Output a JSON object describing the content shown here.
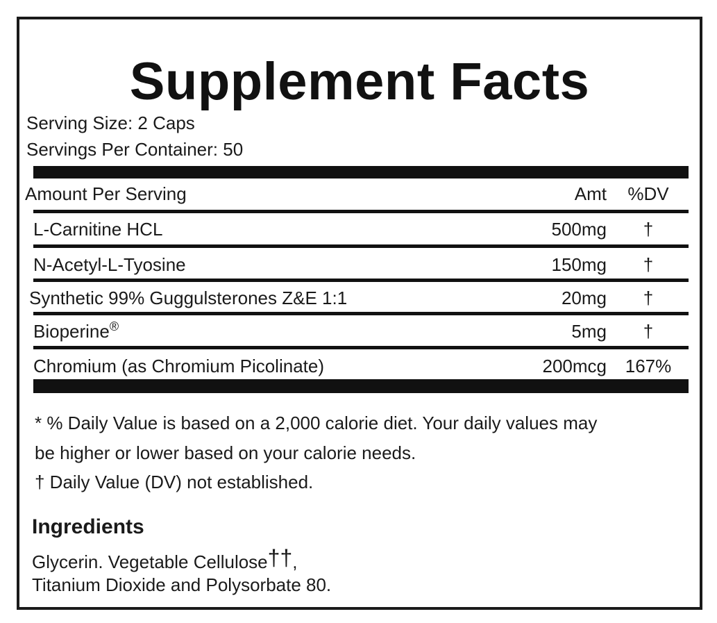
{
  "panel": {
    "title": "Supplement Facts",
    "serving_size": "Serving Size:  2 Caps",
    "servings_per_container": "Servings Per Container: 50"
  },
  "table": {
    "header": {
      "label": "Amount Per Serving",
      "amt": "Amt",
      "dv": "%DV"
    },
    "rows": [
      {
        "name": "L-Carnitine HCL",
        "amt": "500mg",
        "dv": "†"
      },
      {
        "name": "N-Acetyl-L-Tyosine",
        "amt": "150mg",
        "dv": "†"
      },
      {
        "name": "Synthetic 99% Guggulsterones Z&E 1:1",
        "amt": "20mg",
        "dv": "†"
      },
      {
        "name": "Bioperine",
        "mark": "®",
        "amt": "5mg",
        "dv": "†"
      },
      {
        "name": "Chromium (as Chromium Picolinate)",
        "amt": "200mcg",
        "dv": "167%"
      }
    ]
  },
  "footnotes": {
    "line1": "* % Daily Value is based on a 2,000 calorie diet. Your daily values may",
    "line2": "be higher or lower based on your calorie needs.",
    "line3": "† Daily Value (DV) not established."
  },
  "ingredients": {
    "heading": "Ingredients",
    "line1_text": "Glycerin. Vegetable Cellulose",
    "line1_mark": "††",
    "line1_tail": ",",
    "line2": "Titanium Dioxide and Polysorbate 80."
  },
  "colors": {
    "ink": "#111111",
    "background": "#ffffff"
  }
}
